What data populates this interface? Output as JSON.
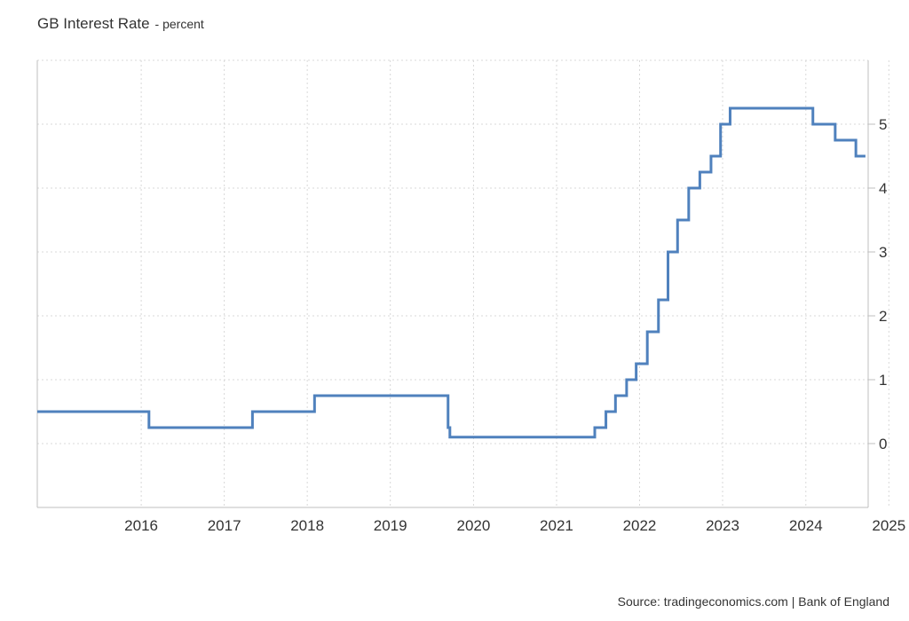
{
  "title": "GB Interest Rate",
  "subtitle_separator": " - ",
  "subtitle": "percent",
  "source": "Source: tradingeconomics.com | Bank of England",
  "colors": {
    "line": "#4f81bd",
    "grid": "#d8d8d8",
    "axis": "#bfbfbf",
    "text": "#333333"
  },
  "chart_data": {
    "type": "line",
    "step": true,
    "title": "GB Interest Rate",
    "subtitle": "percent",
    "xlabel": "",
    "ylabel": "",
    "x_tick_labels": [
      "2016",
      "2017",
      "2018",
      "2019",
      "2020",
      "2021",
      "2022",
      "2023",
      "2024",
      "2025"
    ],
    "y_tick_labels": [
      "0",
      "1",
      "2",
      "3",
      "4",
      "5"
    ],
    "xlim": [
      "2015-04-01",
      "2025-04-01"
    ],
    "ylim": [
      -1,
      6
    ],
    "grid": true,
    "y_axis_position": "right",
    "series": [
      {
        "x": [
          "2015-04-01",
          "2016-08-04",
          "2017-11-02",
          "2018-08-02",
          "2020-03-11",
          "2020-03-19",
          "2021-12-16",
          "2022-02-03",
          "2022-03-17",
          "2022-05-05",
          "2022-06-16",
          "2022-08-04",
          "2022-09-22",
          "2022-11-03",
          "2022-12-15",
          "2023-02-02",
          "2023-03-23",
          "2023-05-11",
          "2023-06-22",
          "2023-08-03",
          "2024-08-01",
          "2024-11-07",
          "2025-02-06",
          "2025-03-20"
        ],
        "values": [
          0.5,
          0.25,
          0.5,
          0.75,
          0.25,
          0.1,
          0.25,
          0.5,
          0.75,
          1.0,
          1.25,
          1.75,
          2.25,
          3.0,
          3.5,
          4.0,
          4.25,
          4.5,
          5.0,
          5.25,
          5.0,
          4.75,
          4.5,
          4.5
        ]
      }
    ]
  }
}
